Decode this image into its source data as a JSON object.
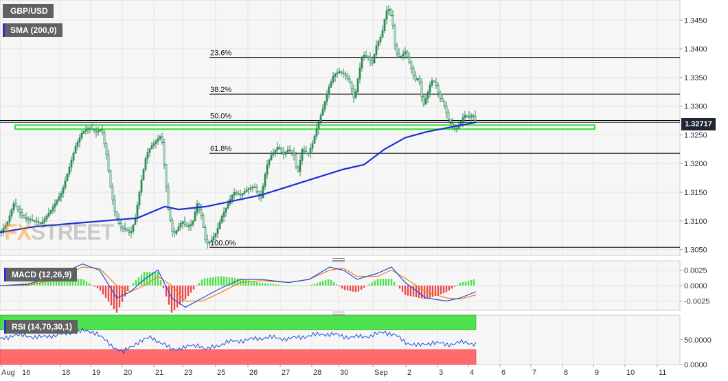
{
  "labels": {
    "pair": "GBP/USD",
    "sma": "SMA (200,0)",
    "macd": "MACD (12,26,9)",
    "rsi": "RSI (14,70,30,1)",
    "watermark_a": "FX",
    "watermark_b": "STREET",
    "last_price": "1.32717"
  },
  "colors": {
    "candle": "#2e8b57",
    "sma": "#1a2fd0",
    "fib": "#000000",
    "zone": "#3ddc3d",
    "macd_line": "#1f4fd6",
    "signal_line": "#f07f1a",
    "hist_pos": "#4be24b",
    "hist_neg": "#ea4a4a",
    "rsi_line": "#1f4fd6",
    "overbought": "#4fe24f",
    "oversold": "#ff6b6b"
  },
  "chart_data": [
    {
      "type": "candlestick",
      "name": "GBP/USD",
      "price_axis": {
        "ticks": [
          "1.3050",
          "1.3100",
          "1.3150",
          "1.3200",
          "1.3250",
          "1.3300",
          "1.3350",
          "1.3400",
          "1.3450"
        ],
        "ylim": [
          1.304,
          1.3485
        ],
        "last_price": 1.32717
      },
      "time_axis": {
        "ticks": [
          "Aug",
          "16",
          "18",
          "19",
          "20",
          "21",
          "23",
          "25",
          "26",
          "27",
          "28",
          "30",
          "Sep",
          "2",
          "3",
          "4",
          "6",
          "7",
          "8",
          "9",
          "10",
          "11"
        ]
      },
      "price_path": [
        [
          0,
          1.308
        ],
        [
          10,
          1.3095
        ],
        [
          20,
          1.313
        ],
        [
          35,
          1.3105
        ],
        [
          50,
          1.31
        ],
        [
          60,
          1.3095
        ],
        [
          75,
          1.312
        ],
        [
          90,
          1.315
        ],
        [
          100,
          1.319
        ],
        [
          110,
          1.323
        ],
        [
          120,
          1.3255
        ],
        [
          130,
          1.3262
        ],
        [
          140,
          1.3255
        ],
        [
          148,
          1.326
        ],
        [
          155,
          1.3215
        ],
        [
          162,
          1.315
        ],
        [
          168,
          1.311
        ],
        [
          175,
          1.309
        ],
        [
          183,
          1.3085
        ],
        [
          190,
          1.3078
        ],
        [
          197,
          1.3105
        ],
        [
          205,
          1.3165
        ],
        [
          213,
          1.3215
        ],
        [
          220,
          1.323
        ],
        [
          228,
          1.324
        ],
        [
          235,
          1.325
        ],
        [
          240,
          1.3185
        ],
        [
          245,
          1.312
        ],
        [
          252,
          1.3075
        ],
        [
          258,
          1.3085
        ],
        [
          265,
          1.31
        ],
        [
          272,
          1.309
        ],
        [
          280,
          1.3095
        ],
        [
          287,
          1.313
        ],
        [
          293,
          1.311
        ],
        [
          300,
          1.306
        ],
        [
          307,
          1.3065
        ],
        [
          315,
          1.308
        ],
        [
          322,
          1.3105
        ],
        [
          330,
          1.3125
        ],
        [
          340,
          1.315
        ],
        [
          350,
          1.3145
        ],
        [
          360,
          1.3155
        ],
        [
          370,
          1.316
        ],
        [
          380,
          1.314
        ],
        [
          388,
          1.3195
        ],
        [
          395,
          1.3215
        ],
        [
          405,
          1.323
        ],
        [
          412,
          1.3215
        ],
        [
          420,
          1.3225
        ],
        [
          428,
          1.3215
        ],
        [
          433,
          1.318
        ],
        [
          440,
          1.3225
        ],
        [
          448,
          1.3215
        ],
        [
          455,
          1.3235
        ],
        [
          462,
          1.3265
        ],
        [
          470,
          1.3295
        ],
        [
          478,
          1.333
        ],
        [
          486,
          1.3355
        ],
        [
          494,
          1.336
        ],
        [
          502,
          1.3355
        ],
        [
          510,
          1.334
        ],
        [
          516,
          1.331
        ],
        [
          522,
          1.3355
        ],
        [
          528,
          1.339
        ],
        [
          536,
          1.3385
        ],
        [
          542,
          1.3375
        ],
        [
          548,
          1.3405
        ],
        [
          556,
          1.3425
        ],
        [
          562,
          1.3465
        ],
        [
          567,
          1.347
        ],
        [
          572,
          1.344
        ],
        [
          576,
          1.3395
        ],
        [
          582,
          1.3385
        ],
        [
          590,
          1.3395
        ],
        [
          598,
          1.337
        ],
        [
          604,
          1.3345
        ],
        [
          610,
          1.335
        ],
        [
          616,
          1.33
        ],
        [
          622,
          1.332
        ],
        [
          628,
          1.3345
        ],
        [
          634,
          1.334
        ],
        [
          640,
          1.3315
        ],
        [
          646,
          1.3305
        ],
        [
          652,
          1.328
        ],
        [
          658,
          1.3265
        ],
        [
          664,
          1.326
        ],
        [
          670,
          1.327
        ],
        [
          676,
          1.3285
        ],
        [
          682,
          1.328
        ],
        [
          688,
          1.3285
        ],
        [
          693,
          1.3272
        ]
      ],
      "sma_200": [
        [
          0,
          1.308
        ],
        [
          50,
          1.309
        ],
        [
          100,
          1.3095
        ],
        [
          150,
          1.31
        ],
        [
          200,
          1.3105
        ],
        [
          240,
          1.3125
        ],
        [
          260,
          1.312
        ],
        [
          300,
          1.3125
        ],
        [
          340,
          1.3135
        ],
        [
          380,
          1.3145
        ],
        [
          420,
          1.316
        ],
        [
          460,
          1.3175
        ],
        [
          500,
          1.319
        ],
        [
          530,
          1.3198
        ],
        [
          560,
          1.3225
        ],
        [
          590,
          1.3245
        ],
        [
          620,
          1.3255
        ],
        [
          650,
          1.3262
        ],
        [
          693,
          1.3272
        ]
      ],
      "fibonacci": [
        {
          "label": "23.6%",
          "value": 1.3385
        },
        {
          "label": "38.2%",
          "value": 1.3321
        },
        {
          "label": "50.0%",
          "value": 1.3275
        },
        {
          "label": "61.8%",
          "value": 1.3218
        },
        {
          "label": "100.0%",
          "value": 1.3054
        }
      ],
      "support_zone": [
        1.326,
        1.3267
      ]
    },
    {
      "type": "line",
      "name": "MACD (12,26,9)",
      "ticks": [
        "0.0025",
        "0.0000",
        "-0.0025"
      ],
      "ylim": [
        -0.004,
        0.004
      ],
      "macd": [
        [
          0,
          0.0
        ],
        [
          40,
          0.0002
        ],
        [
          80,
          0.0015
        ],
        [
          120,
          0.0035
        ],
        [
          145,
          0.0025
        ],
        [
          170,
          -0.002
        ],
        [
          190,
          -0.001
        ],
        [
          210,
          0.001
        ],
        [
          230,
          0.0025
        ],
        [
          250,
          -0.002
        ],
        [
          270,
          -0.0035
        ],
        [
          295,
          -0.002
        ],
        [
          320,
          -0.0005
        ],
        [
          350,
          0.001
        ],
        [
          380,
          0.001
        ],
        [
          420,
          0.0005
        ],
        [
          450,
          0.001
        ],
        [
          480,
          0.003
        ],
        [
          500,
          0.0025
        ],
        [
          520,
          0.001
        ],
        [
          550,
          0.002
        ],
        [
          570,
          0.003
        ],
        [
          590,
          0.0005
        ],
        [
          620,
          -0.002
        ],
        [
          650,
          -0.0025
        ],
        [
          670,
          -0.002
        ],
        [
          693,
          -0.001
        ]
      ],
      "signal": [
        [
          0,
          0.0
        ],
        [
          40,
          0.0
        ],
        [
          80,
          0.001
        ],
        [
          120,
          0.003
        ],
        [
          145,
          0.0028
        ],
        [
          170,
          0.0
        ],
        [
          190,
          -0.001
        ],
        [
          210,
          0.0
        ],
        [
          230,
          0.0015
        ],
        [
          250,
          0.0
        ],
        [
          270,
          -0.0025
        ],
        [
          295,
          -0.0025
        ],
        [
          320,
          -0.0012
        ],
        [
          350,
          0.0005
        ],
        [
          380,
          0.0008
        ],
        [
          420,
          0.0005
        ],
        [
          450,
          0.001
        ],
        [
          480,
          0.0025
        ],
        [
          500,
          0.0028
        ],
        [
          520,
          0.0015
        ],
        [
          550,
          0.0015
        ],
        [
          570,
          0.0025
        ],
        [
          590,
          0.0012
        ],
        [
          620,
          -0.001
        ],
        [
          650,
          -0.002
        ],
        [
          670,
          -0.0022
        ],
        [
          693,
          -0.0015
        ]
      ]
    },
    {
      "type": "line",
      "name": "RSI (14,70,30,1)",
      "ticks": [
        "50.0000",
        "0.0000"
      ],
      "ylim": [
        0,
        100
      ],
      "levels": [
        70,
        30
      ],
      "rsi": [
        [
          0,
          50
        ],
        [
          20,
          60
        ],
        [
          60,
          55
        ],
        [
          120,
          68
        ],
        [
          140,
          65
        ],
        [
          160,
          40
        ],
        [
          180,
          25
        ],
        [
          200,
          45
        ],
        [
          220,
          55
        ],
        [
          240,
          40
        ],
        [
          250,
          30
        ],
        [
          270,
          35
        ],
        [
          290,
          40
        ],
        [
          300,
          30
        ],
        [
          330,
          45
        ],
        [
          360,
          50
        ],
        [
          390,
          55
        ],
        [
          420,
          52
        ],
        [
          450,
          58
        ],
        [
          470,
          62
        ],
        [
          490,
          60
        ],
        [
          510,
          55
        ],
        [
          540,
          58
        ],
        [
          560,
          66
        ],
        [
          575,
          60
        ],
        [
          590,
          45
        ],
        [
          610,
          38
        ],
        [
          630,
          45
        ],
        [
          650,
          40
        ],
        [
          670,
          45
        ],
        [
          693,
          42
        ]
      ]
    }
  ]
}
